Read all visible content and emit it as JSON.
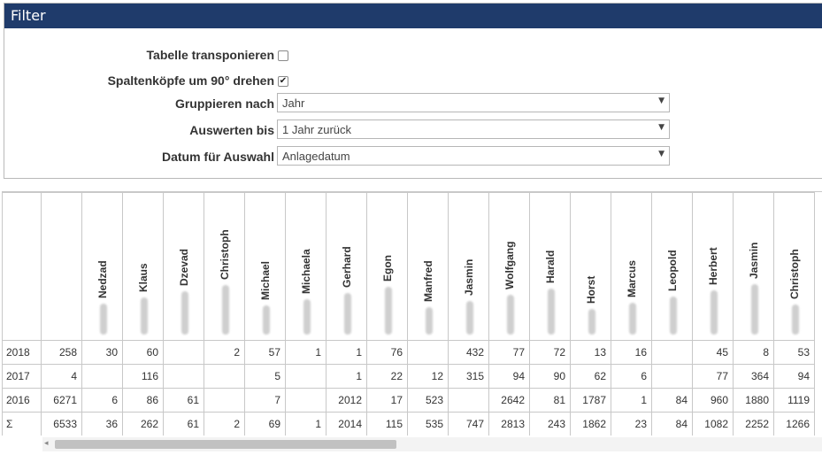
{
  "filter": {
    "title": "Filter",
    "rows": [
      {
        "label": "Tabelle transponieren",
        "type": "checkbox",
        "checked": false
      },
      {
        "label": "Spaltenköpfe um 90° drehen",
        "type": "checkbox",
        "checked": true
      },
      {
        "label": "Gruppieren nach",
        "type": "select",
        "value": "Jahr"
      },
      {
        "label": "Auswerten bis",
        "type": "select",
        "value": "1 Jahr zurück"
      },
      {
        "label": "Datum für Auswahl",
        "type": "select",
        "value": "Anlagedatum"
      }
    ]
  },
  "table": {
    "columns": [
      "",
      "Nedzad",
      "Klaus",
      "Dzevad",
      "Christoph",
      "Michael",
      "Michaela",
      "Gerhard",
      "Egon",
      "Manfred",
      "Jasmin",
      "Wolfgang",
      "Harald",
      "Horst",
      "Marcus",
      "Leopold",
      "Herbert",
      "Jasmin",
      "Christoph"
    ],
    "rows": [
      {
        "label": "2018",
        "values": [
          "258",
          "30",
          "60",
          "",
          "2",
          "57",
          "1",
          "1",
          "76",
          "",
          "432",
          "77",
          "72",
          "13",
          "16",
          "",
          "45",
          "8",
          "53"
        ]
      },
      {
        "label": "2017",
        "values": [
          "4",
          "",
          "116",
          "",
          "",
          "5",
          "",
          "1",
          "22",
          "12",
          "315",
          "94",
          "90",
          "62",
          "6",
          "",
          "77",
          "364",
          "94"
        ]
      },
      {
        "label": "2016",
        "values": [
          "6271",
          "6",
          "86",
          "61",
          "",
          "7",
          "",
          "2012",
          "17",
          "523",
          "",
          "2642",
          "81",
          "1787",
          "1",
          "84",
          "960",
          "1880",
          "1119"
        ]
      },
      {
        "label": "Σ",
        "values": [
          "6533",
          "36",
          "262",
          "61",
          "2",
          "69",
          "1",
          "2014",
          "115",
          "535",
          "747",
          "2813",
          "243",
          "1862",
          "23",
          "84",
          "1082",
          "2252",
          "1266"
        ]
      }
    ]
  },
  "scrollbar": {
    "left_arrow": "◂"
  }
}
